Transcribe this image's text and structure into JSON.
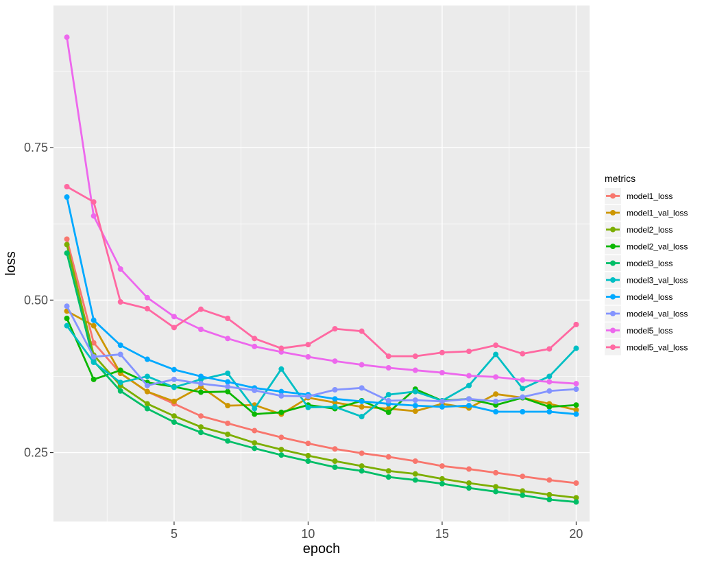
{
  "chart_data": {
    "type": "line",
    "xlabel": "epoch",
    "ylabel": "loss",
    "xlim": [
      0.5,
      20.5
    ],
    "ylim": [
      0.137,
      0.983
    ],
    "x_ticks": [
      5,
      10,
      15,
      20
    ],
    "y_ticks": [
      0.25,
      0.5,
      0.75
    ],
    "y_tick_labels": [
      "0.25",
      "0.50",
      "0.75"
    ],
    "grid": true,
    "legend_title": "metrics",
    "legend_position": "right",
    "x": [
      1,
      2,
      3,
      4,
      5,
      6,
      7,
      8,
      9,
      10,
      11,
      12,
      13,
      14,
      15,
      16,
      17,
      18,
      19,
      20
    ],
    "series": [
      {
        "name": "model1_loss",
        "color": "#F8766D",
        "values": [
          0.6,
          0.43,
          0.38,
          0.35,
          0.33,
          0.31,
          0.298,
          0.286,
          0.275,
          0.265,
          0.256,
          0.249,
          0.243,
          0.236,
          0.228,
          0.223,
          0.217,
          0.211,
          0.205,
          0.2
        ]
      },
      {
        "name": "model1_val_loss",
        "color": "#CD9600",
        "values": [
          0.482,
          0.458,
          0.38,
          0.35,
          0.334,
          0.358,
          0.327,
          0.328,
          0.313,
          0.34,
          0.332,
          0.325,
          0.322,
          0.318,
          0.33,
          0.323,
          0.346,
          0.34,
          0.33,
          0.32
        ]
      },
      {
        "name": "model2_loss",
        "color": "#7CAE00",
        "values": [
          0.591,
          0.41,
          0.36,
          0.33,
          0.31,
          0.292,
          0.28,
          0.266,
          0.255,
          0.245,
          0.236,
          0.228,
          0.22,
          0.215,
          0.207,
          0.2,
          0.194,
          0.187,
          0.181,
          0.176
        ]
      },
      {
        "name": "model2_val_loss",
        "color": "#0CB702",
        "values": [
          0.47,
          0.37,
          0.385,
          0.365,
          0.358,
          0.349,
          0.35,
          0.313,
          0.316,
          0.328,
          0.322,
          0.335,
          0.316,
          0.354,
          0.335,
          0.338,
          0.328,
          0.34,
          0.325,
          0.328
        ]
      },
      {
        "name": "model3_loss",
        "color": "#00BE67",
        "values": [
          0.577,
          0.4,
          0.351,
          0.322,
          0.3,
          0.283,
          0.269,
          0.257,
          0.246,
          0.236,
          0.226,
          0.22,
          0.21,
          0.205,
          0.199,
          0.192,
          0.186,
          0.18,
          0.173,
          0.169
        ]
      },
      {
        "name": "model3_val_loss",
        "color": "#00BFC4",
        "values": [
          0.458,
          0.398,
          0.365,
          0.375,
          0.357,
          0.37,
          0.38,
          0.322,
          0.387,
          0.324,
          0.325,
          0.309,
          0.345,
          0.35,
          0.335,
          0.36,
          0.411,
          0.355,
          0.375,
          0.421
        ]
      },
      {
        "name": "model4_loss",
        "color": "#00A9FF",
        "values": [
          0.669,
          0.467,
          0.426,
          0.403,
          0.386,
          0.375,
          0.366,
          0.356,
          0.35,
          0.345,
          0.338,
          0.334,
          0.33,
          0.327,
          0.325,
          0.327,
          0.317,
          0.317,
          0.317,
          0.313
        ]
      },
      {
        "name": "model4_val_loss",
        "color": "#8494FF",
        "values": [
          0.49,
          0.407,
          0.411,
          0.36,
          0.37,
          0.363,
          0.358,
          0.352,
          0.343,
          0.342,
          0.353,
          0.356,
          0.335,
          0.336,
          0.334,
          0.338,
          0.334,
          0.341,
          0.351,
          0.354
        ]
      },
      {
        "name": "model5_loss",
        "color": "#ED68ED",
        "values": [
          0.931,
          0.638,
          0.551,
          0.504,
          0.473,
          0.452,
          0.437,
          0.424,
          0.415,
          0.407,
          0.4,
          0.394,
          0.389,
          0.385,
          0.381,
          0.376,
          0.374,
          0.369,
          0.366,
          0.363
        ]
      },
      {
        "name": "model5_val_loss",
        "color": "#FF68A1",
        "values": [
          0.686,
          0.661,
          0.497,
          0.486,
          0.455,
          0.485,
          0.47,
          0.437,
          0.421,
          0.427,
          0.453,
          0.449,
          0.408,
          0.408,
          0.414,
          0.416,
          0.426,
          0.412,
          0.42,
          0.46
        ]
      }
    ]
  }
}
